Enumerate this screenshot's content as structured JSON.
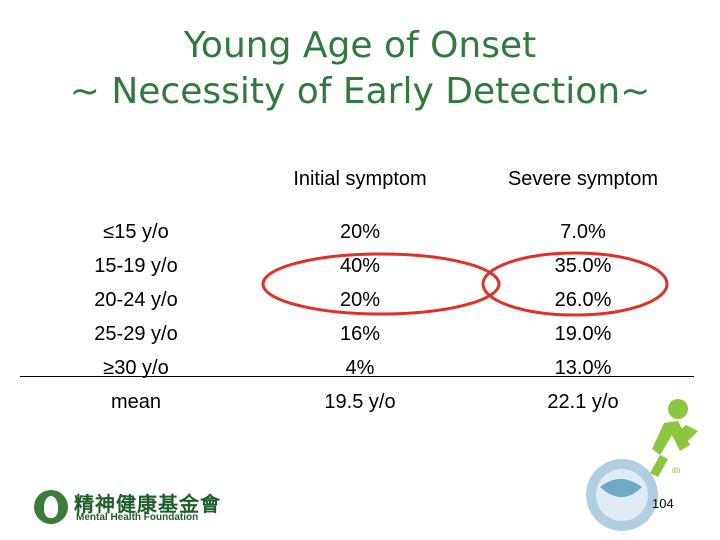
{
  "title": {
    "line1": "Young Age of Onset",
    "line2": "~ Necessity of Early Detection~"
  },
  "headers": {
    "initial": "Initial symptom",
    "severe": "Severe symptom"
  },
  "rows": [
    {
      "age": "≤15 y/o",
      "initial": "20%",
      "severe": "7.0%"
    },
    {
      "age": "15-19 y/o",
      "initial": "40%",
      "severe": "35.0%"
    },
    {
      "age": "20-24 y/o",
      "initial": "20%",
      "severe": "26.0%"
    },
    {
      "age": "25-29 y/o",
      "initial": "16%",
      "severe": "19.0%"
    },
    {
      "age": "≥30 y/o",
      "initial": "4%",
      "severe": "13.0%"
    },
    {
      "age": "mean",
      "initial": "19.5 y/o",
      "severe": "22.1 y/o"
    }
  ],
  "logo": {
    "chinese": "精神健康基金會",
    "english": "Mental Health Foundation"
  },
  "page_number": "104",
  "colors": {
    "title": "#2f7a3c",
    "highlight_oval": "#e0302a",
    "deco_green": "#8cc63f",
    "deco_blue": "#3a8fb5"
  }
}
